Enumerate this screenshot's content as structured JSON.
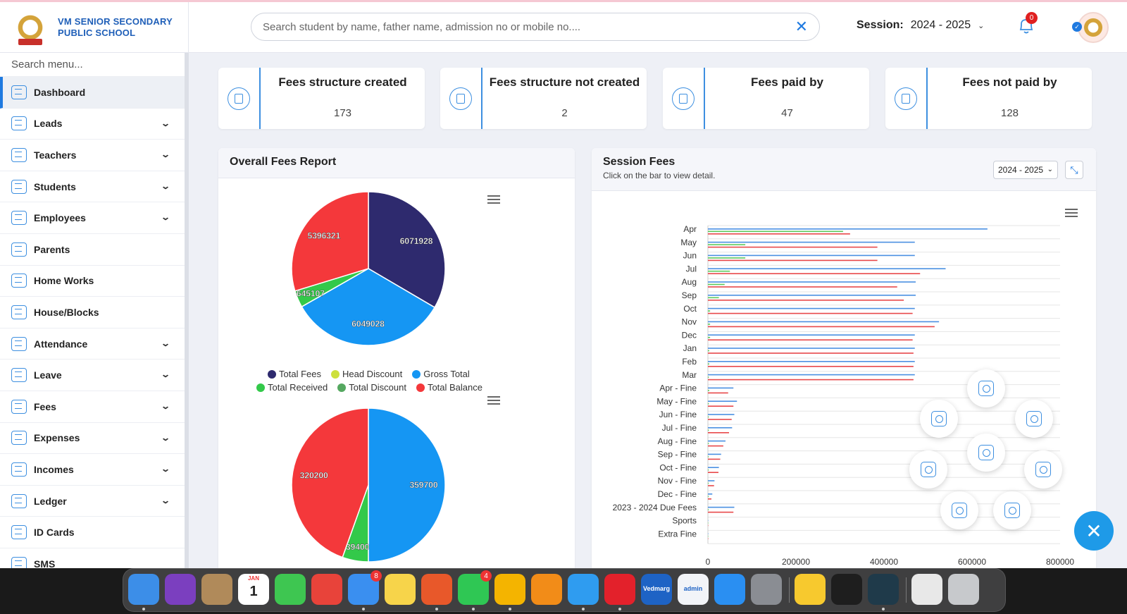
{
  "header": {
    "school_name_line1": "VM SENIOR SECONDARY",
    "school_name_line2": "PUBLIC SCHOOL",
    "search_placeholder": "Search student by name, father name, admission no or mobile no....",
    "session_label": "Session:",
    "session_value": "2024 - 2025",
    "notifications_count": "0"
  },
  "sidebar": {
    "search_placeholder": "Search menu...",
    "items": [
      {
        "label": "Dashboard",
        "icon": "dashboard-icon",
        "active": true,
        "expandable": false
      },
      {
        "label": "Leads",
        "icon": "leads-icon",
        "active": false,
        "expandable": true
      },
      {
        "label": "Teachers",
        "icon": "teachers-icon",
        "active": false,
        "expandable": true
      },
      {
        "label": "Students",
        "icon": "students-icon",
        "active": false,
        "expandable": true
      },
      {
        "label": "Employees",
        "icon": "employees-icon",
        "active": false,
        "expandable": true
      },
      {
        "label": "Parents",
        "icon": "parents-icon",
        "active": false,
        "expandable": false
      },
      {
        "label": "Home Works",
        "icon": "homework-icon",
        "active": false,
        "expandable": false
      },
      {
        "label": "House/Blocks",
        "icon": "house-icon",
        "active": false,
        "expandable": false
      },
      {
        "label": "Attendance",
        "icon": "calendar-icon",
        "active": false,
        "expandable": true
      },
      {
        "label": "Leave",
        "icon": "leave-icon",
        "active": false,
        "expandable": true
      },
      {
        "label": "Fees",
        "icon": "fees-icon",
        "active": false,
        "expandable": true
      },
      {
        "label": "Expenses",
        "icon": "expenses-icon",
        "active": false,
        "expandable": true
      },
      {
        "label": "Incomes",
        "icon": "incomes-icon",
        "active": false,
        "expandable": true
      },
      {
        "label": "Ledger",
        "icon": "ledger-icon",
        "active": false,
        "expandable": true
      },
      {
        "label": "ID Cards",
        "icon": "id-card-icon",
        "active": false,
        "expandable": false
      },
      {
        "label": "SMS",
        "icon": "sms-icon",
        "active": false,
        "expandable": false
      }
    ]
  },
  "stats": [
    {
      "title": "Fees structure created",
      "value": "173",
      "icon": "fees-structure-icon"
    },
    {
      "title": "Fees structure not created",
      "value": "2",
      "icon": "fees-structure-icon"
    },
    {
      "title": "Fees paid by",
      "value": "47",
      "icon": "money-bag-icon"
    },
    {
      "title": "Fees not paid by",
      "value": "128",
      "icon": "rupee-refresh-icon"
    }
  ],
  "overall_report": {
    "title": "Overall Fees Report"
  },
  "session_fees": {
    "title": "Session Fees",
    "subtitle": "Click on the bar to view detail.",
    "year_select": "2024 - 2025"
  },
  "colors": {
    "total_fees": "#2e2a6e",
    "head_discount": "#cde03c",
    "gross_total": "#1596f3",
    "total_received": "#33c94a",
    "total_discount": "#55a860",
    "total_balance": "#f4383b",
    "accent": "#1f7ae0"
  },
  "chart_data": [
    {
      "type": "pie",
      "title": "",
      "legend_placement": "bottom",
      "legend": [
        "Total Fees",
        "Head Discount",
        "Gross Total",
        "Total Received",
        "Total Discount",
        "Total Balance"
      ],
      "slices": [
        {
          "name": "Total Fees",
          "value": 6071928,
          "label": "6071928"
        },
        {
          "name": "Gross Total",
          "value": 6049028,
          "label": "6049028"
        },
        {
          "name": "Total Received",
          "value": 645107,
          "label": "645107"
        },
        {
          "name": "Total Balance",
          "value": 5396321,
          "label": "5396321"
        }
      ]
    },
    {
      "type": "pie",
      "title": "",
      "slices": [
        {
          "name": "Gross Total",
          "value": 359700,
          "label": "359700"
        },
        {
          "name": "Total Received",
          "value": 39400,
          "label": "39400"
        },
        {
          "name": "Total Balance",
          "value": 320200,
          "label": "320200"
        }
      ]
    },
    {
      "type": "bar",
      "orientation": "horizontal",
      "title": "",
      "categories": [
        "Apr",
        "May",
        "Jun",
        "Jul",
        "Aug",
        "Sep",
        "Oct",
        "Nov",
        "Dec",
        "Jan",
        "Feb",
        "Mar",
        "Apr - Fine",
        "May - Fine",
        "Jun - Fine",
        "Jul - Fine",
        "Aug - Fine",
        "Sep - Fine",
        "Oct - Fine",
        "Nov - Fine",
        "Dec - Fine",
        "2023 - 2024 Due Fees",
        "Sports",
        "Extra Fine"
      ],
      "xlim": [
        0,
        800000
      ],
      "xticks": [
        "0",
        "200000",
        "400000",
        "600000",
        "800000"
      ],
      "grid": true,
      "series": [
        {
          "color": "#4a90e2",
          "values": [
            635000,
            470000,
            470000,
            540000,
            472000,
            472000,
            470000,
            525000,
            470000,
            470000,
            470000,
            470000,
            58000,
            66000,
            60000,
            55000,
            40000,
            30000,
            25000,
            15000,
            10000,
            60000,
            0,
            0
          ]
        },
        {
          "color": "#5cc85c",
          "values": [
            307000,
            85000,
            85000,
            50000,
            38000,
            25000,
            5000,
            5000,
            5000,
            3000,
            3000,
            2000,
            3000,
            2000,
            2000,
            2000,
            2000,
            1000,
            1000,
            1000,
            500,
            1000,
            0,
            0
          ]
        },
        {
          "color": "#e8484a",
          "values": [
            323000,
            385000,
            385000,
            482000,
            430000,
            445000,
            465000,
            515000,
            465000,
            467000,
            467000,
            467000,
            46000,
            58000,
            54000,
            48000,
            35000,
            28000,
            24000,
            14000,
            8000,
            58000,
            0,
            0
          ]
        }
      ]
    }
  ],
  "dock": {
    "apps": [
      {
        "name": "finder-icon",
        "color": "#3c8ee8",
        "running": true
      },
      {
        "name": "siri-icon",
        "color": "#7b3fbf",
        "running": false
      },
      {
        "name": "contacts-icon",
        "color": "#b08a5a",
        "running": false
      },
      {
        "name": "calendar-icon",
        "color": "#ffffff",
        "running": false,
        "label": "1",
        "sublabel": "JAN"
      },
      {
        "name": "facetime-icon",
        "color": "#3ec651",
        "running": false
      },
      {
        "name": "anydesk-icon",
        "color": "#e8433a",
        "running": false
      },
      {
        "name": "mail-icon",
        "color": "#3a8ff0",
        "running": true,
        "badge": "8"
      },
      {
        "name": "notes-icon",
        "color": "#f7d44a",
        "running": false
      },
      {
        "name": "firefox-icon",
        "color": "#e8582a",
        "running": true
      },
      {
        "name": "whatsapp-icon",
        "color": "#2fc754",
        "running": true,
        "badge": "4"
      },
      {
        "name": "chrome-icon",
        "color": "#f4b400",
        "running": true
      },
      {
        "name": "sublime-icon",
        "color": "#f28c18",
        "running": false
      },
      {
        "name": "safari-icon",
        "color": "#2f9cf0",
        "running": true
      },
      {
        "name": "opera-icon",
        "color": "#e3212b",
        "running": true
      },
      {
        "name": "vedmarg-icon",
        "color": "#1e63c5",
        "running": false,
        "label": "Vedmarg"
      },
      {
        "name": "vedmarg-admin-icon",
        "color": "#f2f4f8",
        "running": false,
        "label": "admin"
      },
      {
        "name": "app-store-icon",
        "color": "#2a8ff2",
        "running": false
      },
      {
        "name": "system-settings-icon",
        "color": "#8a8d93",
        "running": false
      },
      {
        "name": "tips-icon",
        "color": "#f7c92e",
        "running": false
      },
      {
        "name": "terminal-icon",
        "color": "#1e1e1e",
        "running": false
      },
      {
        "name": "cursor-app-icon",
        "color": "#1f3a4a",
        "running": true
      },
      {
        "name": "archive-icon",
        "color": "#e8e8e8",
        "running": false
      },
      {
        "name": "trash-icon",
        "color": "#c7c9cc",
        "running": false
      }
    ]
  }
}
